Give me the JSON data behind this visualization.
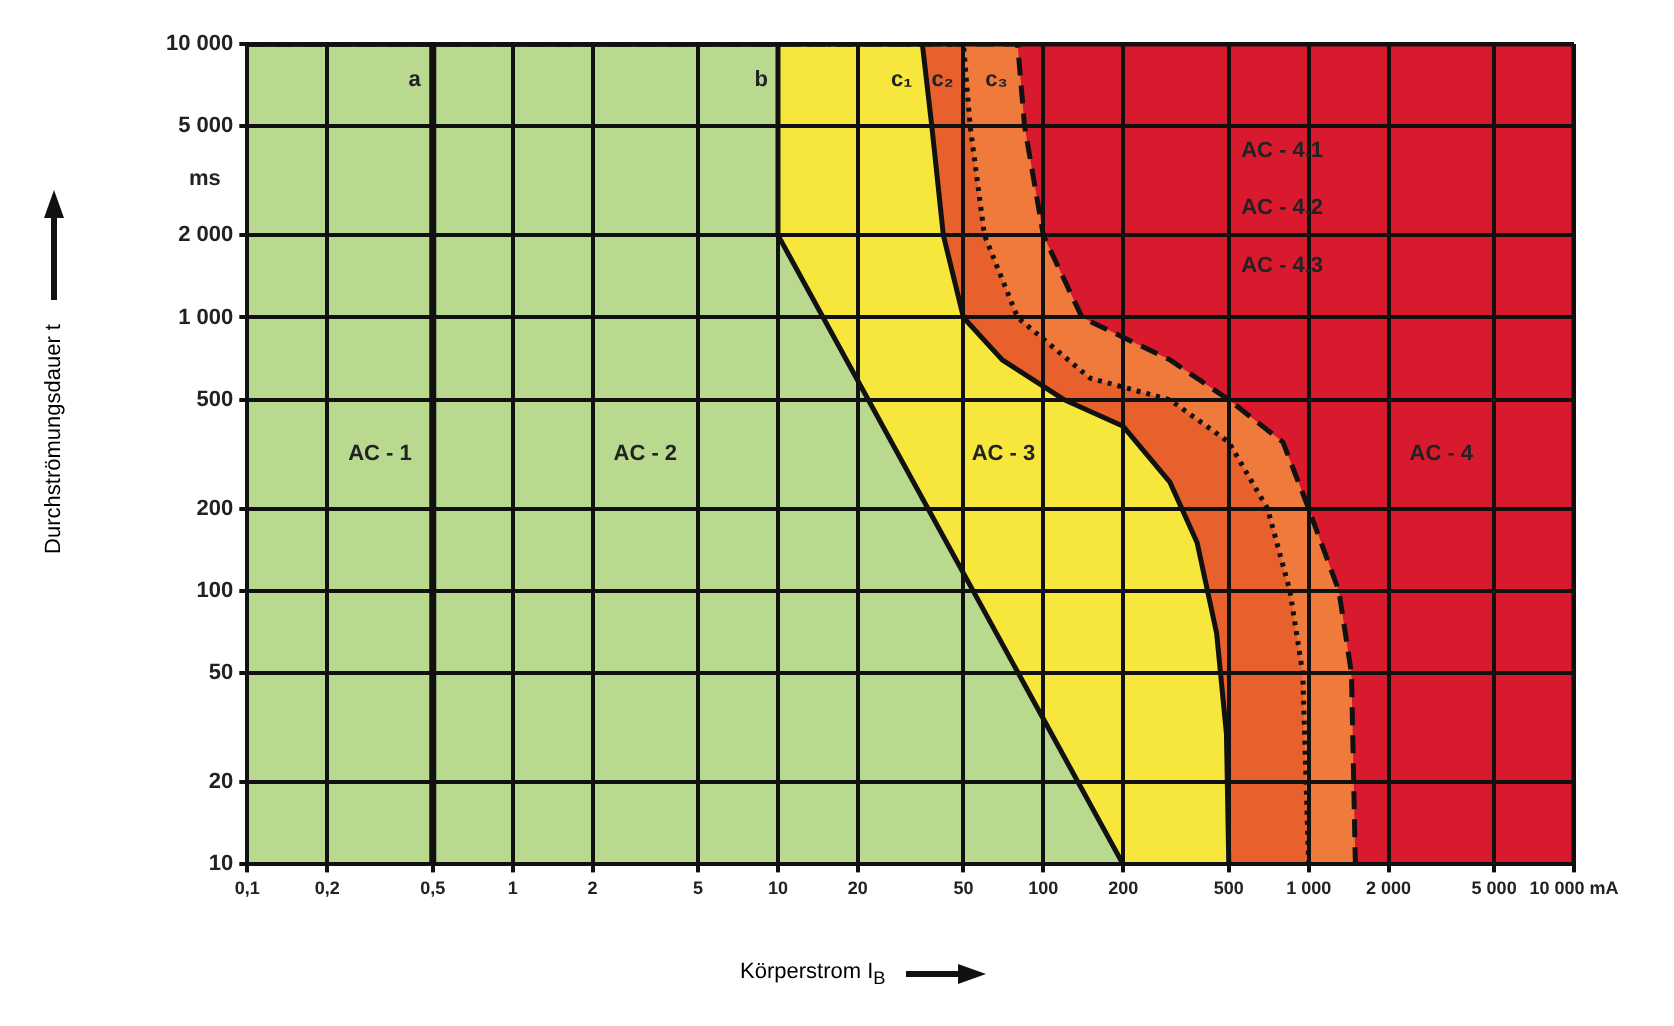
{
  "chart_data": {
    "type": "area",
    "xlabel": "Körperstrom I$_{B}$",
    "ylabel": "Durchströmungsdauer t",
    "log": "xy",
    "grid": true,
    "legend": false,
    "xlim": [
      0.1,
      10000
    ],
    "ylim": [
      10,
      10000
    ],
    "xticks": [
      {
        "value": 0.1,
        "label": "0,1"
      },
      {
        "value": 0.2,
        "label": "0,2"
      },
      {
        "value": 0.5,
        "label": "0,5"
      },
      1,
      2,
      5,
      10,
      20,
      50,
      100,
      200,
      500,
      {
        "value": 1000,
        "label": "1 000"
      },
      {
        "value": 2000,
        "label": "2 000"
      },
      {
        "value": 5000,
        "label": "5 000"
      },
      {
        "value": 10000,
        "label": "10 000 mA"
      }
    ],
    "yticks": [
      10,
      20,
      50,
      100,
      200,
      500,
      {
        "value": 1000,
        "label": "1 000"
      },
      {
        "value": 2000,
        "label": "2 000"
      },
      {
        "value": 5000,
        "label": "5 000"
      },
      {
        "value": 10000,
        "label": "10 000"
      }
    ],
    "series": [
      {
        "name": "b",
        "color": "#b9d98f",
        "line_style": "solid",
        "x": [
          0.1,
          10,
          10,
          200
        ],
        "values": [
          10000,
          10000,
          2000,
          10
        ]
      },
      {
        "name": "c₁",
        "color": "#f7e63c",
        "line_style": "solid",
        "x": [
          0.1,
          35,
          38,
          42,
          50,
          70,
          120,
          200,
          300,
          380,
          450,
          490,
          500
        ],
        "values": [
          10000,
          10000,
          5000,
          2000,
          1000,
          700,
          500,
          400,
          250,
          150,
          70,
          30,
          10
        ]
      },
      {
        "name": "c₂",
        "color": "#e8602c",
        "line_style": "dotted",
        "x": [
          0.1,
          50,
          53,
          60,
          80,
          150,
          300,
          500,
          700,
          850,
          950,
          1000
        ],
        "values": [
          10000,
          10000,
          5000,
          2000,
          1000,
          600,
          500,
          350,
          200,
          100,
          50,
          10
        ]
      },
      {
        "name": "c₃",
        "color": "#f07a3c",
        "line_style": "dashed",
        "x": [
          0.1,
          80,
          85,
          100,
          140,
          300,
          500,
          800,
          1000,
          1300,
          1450,
          1500
        ],
        "values": [
          10000,
          10000,
          5000,
          2000,
          1000,
          700,
          500,
          350,
          200,
          100,
          50,
          10
        ]
      },
      {
        "color": "#d91a2e",
        "line_style": "solid",
        "x": [
          0.1,
          10000,
          10000
        ],
        "values": [
          10000,
          10000,
          10
        ]
      }
    ],
    "ref_lines": [
      {
        "axis": "x",
        "value": 0.5,
        "label": "a",
        "color": "#111111"
      }
    ],
    "annotations": [
      "ms",
      "AC - 1",
      "AC - 2",
      "AC - 3",
      "AC - 4",
      "AC - 4.1",
      "AC - 4.2",
      "AC - 4.3"
    ]
  }
}
